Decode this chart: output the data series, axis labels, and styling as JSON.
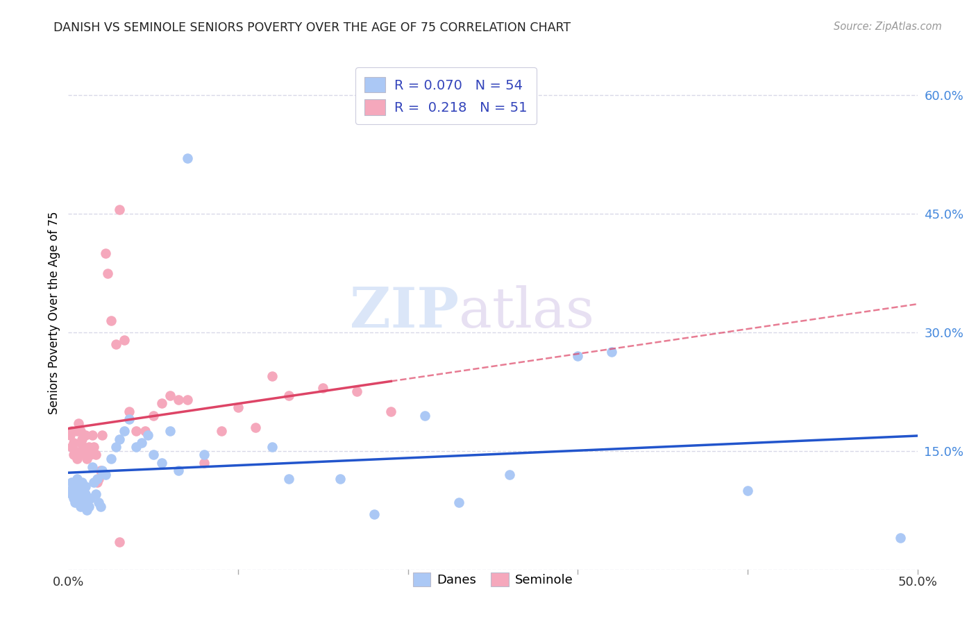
{
  "title": "DANISH VS SEMINOLE SENIORS POVERTY OVER THE AGE OF 75 CORRELATION CHART",
  "source": "Source: ZipAtlas.com",
  "ylabel": "Seniors Poverty Over the Age of 75",
  "xlim": [
    0.0,
    0.5
  ],
  "ylim": [
    0.0,
    0.65
  ],
  "yticks": [
    0.0,
    0.15,
    0.3,
    0.45,
    0.6
  ],
  "ytick_labels": [
    "",
    "15.0%",
    "30.0%",
    "45.0%",
    "60.0%"
  ],
  "xticks": [
    0.0,
    0.1,
    0.2,
    0.3,
    0.4,
    0.5
  ],
  "xtick_labels": [
    "0.0%",
    "",
    "",
    "",
    "",
    "50.0%"
  ],
  "danes_color": "#abc8f5",
  "seminole_color": "#f5a8bc",
  "danes_line_color": "#2255cc",
  "seminole_line_color": "#dd4466",
  "danes_R": 0.07,
  "danes_N": 54,
  "seminole_R": 0.218,
  "seminole_N": 51,
  "danes_x": [
    0.001,
    0.002,
    0.002,
    0.003,
    0.003,
    0.004,
    0.004,
    0.005,
    0.005,
    0.006,
    0.006,
    0.007,
    0.007,
    0.008,
    0.008,
    0.009,
    0.01,
    0.01,
    0.011,
    0.012,
    0.013,
    0.014,
    0.015,
    0.016,
    0.017,
    0.018,
    0.019,
    0.02,
    0.022,
    0.025,
    0.028,
    0.03,
    0.033,
    0.036,
    0.04,
    0.043,
    0.047,
    0.05,
    0.055,
    0.06,
    0.065,
    0.07,
    0.08,
    0.12,
    0.13,
    0.16,
    0.18,
    0.21,
    0.23,
    0.26,
    0.3,
    0.32,
    0.4,
    0.49
  ],
  "danes_y": [
    0.1,
    0.095,
    0.11,
    0.09,
    0.105,
    0.085,
    0.1,
    0.095,
    0.115,
    0.09,
    0.105,
    0.08,
    0.095,
    0.1,
    0.11,
    0.085,
    0.095,
    0.105,
    0.075,
    0.08,
    0.09,
    0.13,
    0.11,
    0.095,
    0.115,
    0.085,
    0.08,
    0.125,
    0.12,
    0.14,
    0.155,
    0.165,
    0.175,
    0.19,
    0.155,
    0.16,
    0.17,
    0.145,
    0.135,
    0.175,
    0.125,
    0.52,
    0.145,
    0.155,
    0.115,
    0.115,
    0.07,
    0.195,
    0.085,
    0.12,
    0.27,
    0.275,
    0.1,
    0.04
  ],
  "seminole_x": [
    0.001,
    0.002,
    0.002,
    0.003,
    0.003,
    0.004,
    0.005,
    0.005,
    0.006,
    0.006,
    0.007,
    0.007,
    0.008,
    0.008,
    0.009,
    0.01,
    0.01,
    0.011,
    0.012,
    0.013,
    0.014,
    0.015,
    0.016,
    0.017,
    0.018,
    0.019,
    0.02,
    0.022,
    0.023,
    0.025,
    0.028,
    0.03,
    0.033,
    0.036,
    0.04,
    0.045,
    0.05,
    0.055,
    0.06,
    0.065,
    0.07,
    0.08,
    0.09,
    0.1,
    0.11,
    0.12,
    0.13,
    0.15,
    0.17,
    0.19,
    0.03
  ],
  "seminole_y": [
    0.17,
    0.175,
    0.155,
    0.145,
    0.16,
    0.15,
    0.14,
    0.175,
    0.145,
    0.185,
    0.16,
    0.175,
    0.15,
    0.165,
    0.155,
    0.145,
    0.17,
    0.14,
    0.155,
    0.145,
    0.17,
    0.155,
    0.145,
    0.11,
    0.115,
    0.125,
    0.17,
    0.4,
    0.375,
    0.315,
    0.285,
    0.455,
    0.29,
    0.2,
    0.175,
    0.175,
    0.195,
    0.21,
    0.22,
    0.215,
    0.215,
    0.135,
    0.175,
    0.205,
    0.18,
    0.245,
    0.22,
    0.23,
    0.225,
    0.2,
    0.035
  ],
  "watermark_zip": "ZIP",
  "watermark_atlas": "atlas",
  "background_color": "#ffffff",
  "grid_color": "#d8d8e8",
  "legend_label_color": "#3344bb",
  "title_color": "#222222",
  "source_color": "#999999",
  "ytick_color": "#4488dd"
}
